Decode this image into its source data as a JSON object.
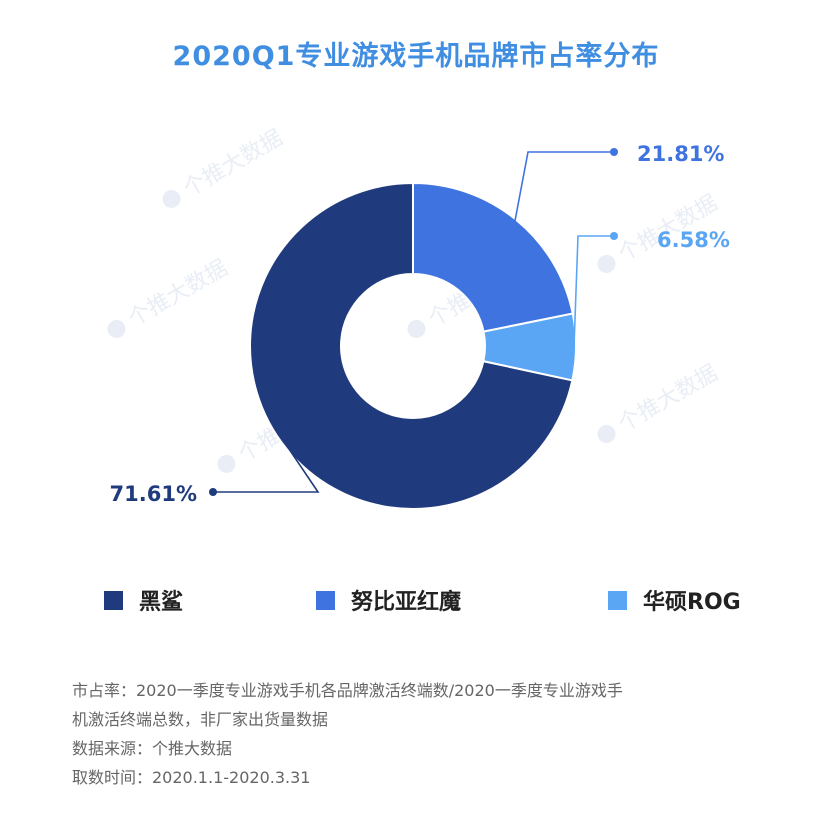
{
  "chart_data": {
    "type": "pie",
    "title": "2020Q1专业游戏手机品牌市占率分布",
    "categories": [
      "黑鲨",
      "努比亚红魔",
      "华硕ROG"
    ],
    "values": [
      71.61,
      21.81,
      6.58
    ],
    "labels": [
      "71.61%",
      "21.81%",
      "6.58%"
    ],
    "colors": [
      "#203b7d",
      "#3f74e0",
      "#5aa6f4"
    ],
    "donut": true,
    "legend_position": "bottom"
  },
  "watermark": {
    "text": "个推大数据"
  },
  "footnotes": [
    "市占率：2020一季度专业游戏手机各品牌激活终端数/2020一季度专业游戏手",
    "机激活终端总数，非厂家出货量数据",
    "数据来源：个推大数据",
    "取数时间：2020.1.1-2020.3.31"
  ]
}
